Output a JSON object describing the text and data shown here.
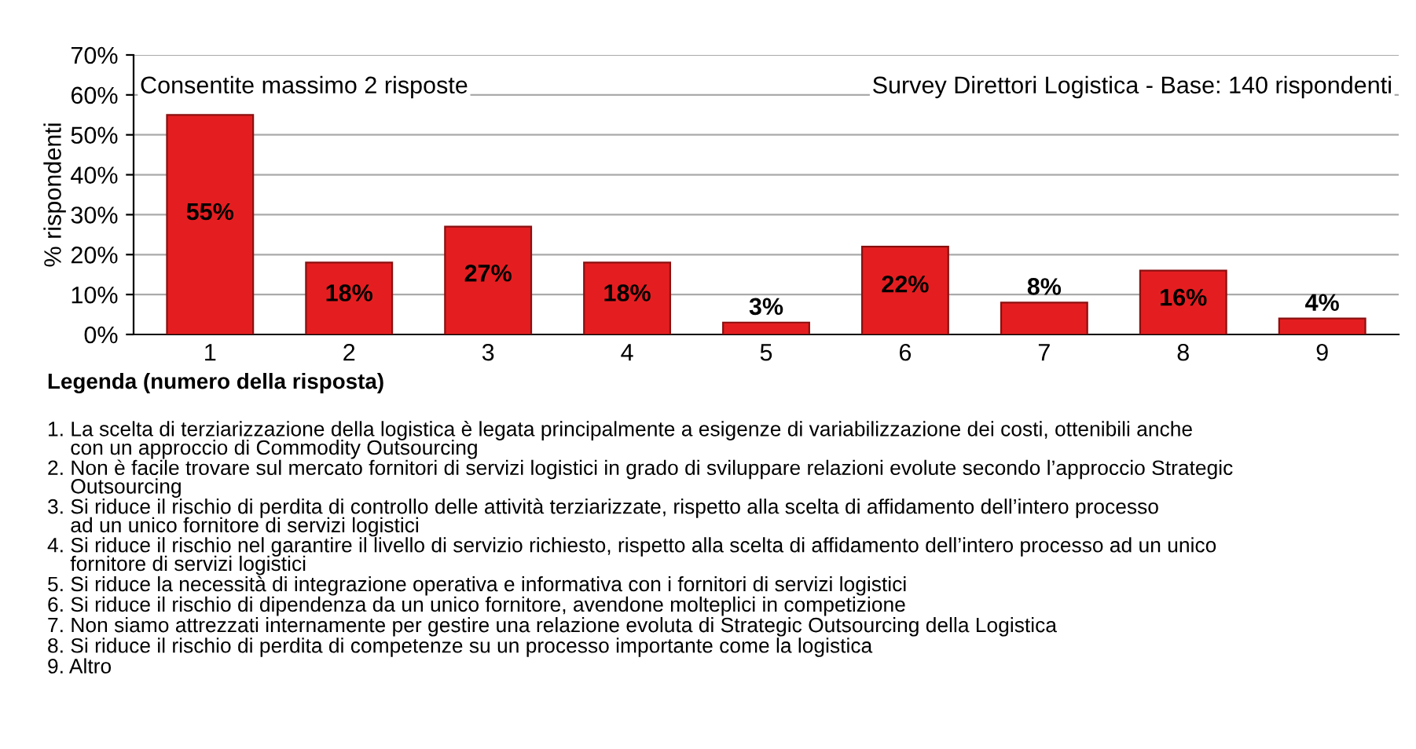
{
  "chart_data": {
    "type": "bar",
    "ylabel": "% rispondenti",
    "categories": [
      "1",
      "2",
      "3",
      "4",
      "5",
      "6",
      "7",
      "8",
      "9"
    ],
    "values": [
      55,
      18,
      27,
      18,
      3,
      22,
      8,
      16,
      4
    ],
    "value_labels": [
      "55%",
      "18%",
      "27%",
      "18%",
      "3%",
      "22%",
      "8%",
      "16%",
      "4%"
    ],
    "color": "#e41e20",
    "ylim": [
      0,
      70
    ],
    "yticks": [
      {
        "value": 0,
        "label": "0%"
      },
      {
        "value": 10,
        "label": "10%"
      },
      {
        "value": 20,
        "label": "20%"
      },
      {
        "value": 30,
        "label": "30%"
      },
      {
        "value": 40,
        "label": "40%"
      },
      {
        "value": 50,
        "label": "50%"
      },
      {
        "value": 60,
        "label": "60%"
      },
      {
        "value": 70,
        "label": "70%"
      }
    ],
    "grid": "y",
    "annotations": [
      "Consentite massimo 2 risposte",
      "Survey Direttori Logistica - Base: 140 rispondenti",
      "Legenda (numero della risposta)",
      "1. La scelta di terziarizzazione della logistica è legata principalmente a esigenze di variabilizzazione dei costi, ottenibili anche\n    con un approccio di Commodity Outsourcing",
      "2. Non è facile trovare sul mercato fornitori di servizi logistici in grado di sviluppare relazioni evolute secondo l’approccio Strategic\n    Outsourcing",
      "3. Si riduce il rischio di perdita di controllo delle attività terziarizzate, rispetto alla scelta di affidamento dell’intero processo\n    ad un unico fornitore di servizi logistici",
      "4. Si riduce il rischio nel garantire il livello di servizio richiesto, rispetto alla scelta di affidamento dell’intero processo ad un unico\n    fornitore di servizi logistici",
      "5. Si riduce la necessità di integrazione operativa e informativa con i fornitori di servizi logistici",
      "6. Si riduce il rischio di dipendenza da un unico fornitore, avendone molteplici in competizione",
      "7. Non siamo attrezzati internamente per gestire una relazione evoluta di Strategic Outsourcing della Logistica",
      "8. Si riduce il rischio di perdita di competenze su un processo importante come la logistica",
      "9. Altro"
    ]
  }
}
